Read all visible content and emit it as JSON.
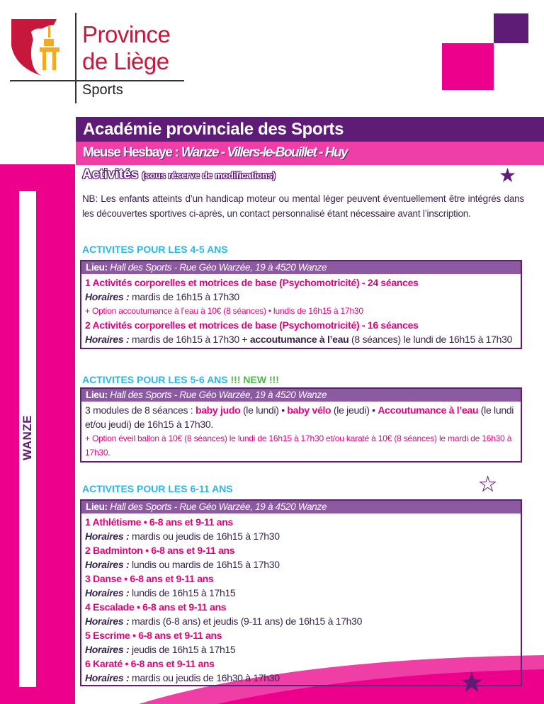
{
  "logo": {
    "line1": "Province",
    "line2": "de Liège",
    "section": "Sports"
  },
  "banner": {
    "title": "Académie provinciale des Sports",
    "region": "Meuse Hesbaye :",
    "towns": "Wanze - Villers-le-Bouillet - Huy"
  },
  "side_label": "WANZE",
  "activities": {
    "title": "Activités",
    "note": "(sous réserve de modifications)"
  },
  "nb": "NB: Les enfants atteints d’un handicap moteur ou mental léger peuvent éventuellement être intégrés dans les découvertes sportives ci-après, un contact personnalisé étant nécessaire avant l’inscription.",
  "lieu_label": "Lieu:",
  "lieu": "Hall des Sports - Rue Géo Warzée, 19 à 4520 Wanze",
  "horaires_label": "Horaires :",
  "s1": {
    "title": "ACTIVITES POUR LES 4-5 ANS",
    "a1": "1 Activités corporelles et motrices de base (Psychomotricité) - 24 séances",
    "a1_h": "mardis de 16h15 à 17h30",
    "a1_opt": "+ Option accoutumance à l’eau à 10€ (8 séances) • lundis de 16h15 à 17h30",
    "a2": "2 Activités corporelles et motrices de base (Psychomotricité) - 16 séances",
    "a2_h1": "mardis de 16h15 à 17h30 + ",
    "a2_b": "accoutumance à l’eau",
    "a2_h2": " (8 séances) le lundi de 16h15 à 17h30"
  },
  "s2": {
    "title": "ACTIVITES POUR LES 5-6 ANS",
    "new": "!!! NEW !!!",
    "t1": "3 modules de 8 séances : ",
    "b1": "baby judo",
    "t2": " (le lundi) • ",
    "b2": "baby vélo",
    "t3": " (le jeudi) • ",
    "b3": "Accoutumance à l’eau",
    "t4": " (le lundi et/ou jeudi) de 16h15 à 17h30.",
    "opt": "+ Option éveil ballon à 10€ (8 séances) le lundi de 16h15 à 17h30 et/ou karaté à 10€ (8 séances) le mardi de 16h30 à 17h30."
  },
  "s3": {
    "title": "ACTIVITES POUR LES 6-11 ANS",
    "items": [
      {
        "name": "1 Athlétisme • 6-8 ans et 9-11 ans",
        "h": "mardis ou jeudis de 16h15 à 17h30"
      },
      {
        "name": "2 Badminton • 6-8 ans et 9-11 ans",
        "h": "lundis ou mardis de 16h15 à 17h30"
      },
      {
        "name": "3 Danse • 6-8 ans et 9-11 ans",
        "h": "lundis de 16h15 à 17h15"
      },
      {
        "name": "4 Escalade • 6-8 ans et 9-11 ans",
        "h": "mardis (6-8 ans) et jeudis (9-11 ans) de 16h15 à 17h30"
      },
      {
        "name": "5 Escrime • 6-8 ans et 9-11 ans",
        "h": "jeudis de 16h15 à 17h15"
      },
      {
        "name": "6 Karaté • 6-8 ans et 9-11 ans",
        "h": "mardis ou jeudis de 16h30 à 17h30"
      }
    ]
  },
  "colors": {
    "purple": "#5e1c77",
    "pink": "#ec008c",
    "cyan": "#2cb6e8",
    "green": "#4bb84a",
    "red": "#c8173d"
  }
}
